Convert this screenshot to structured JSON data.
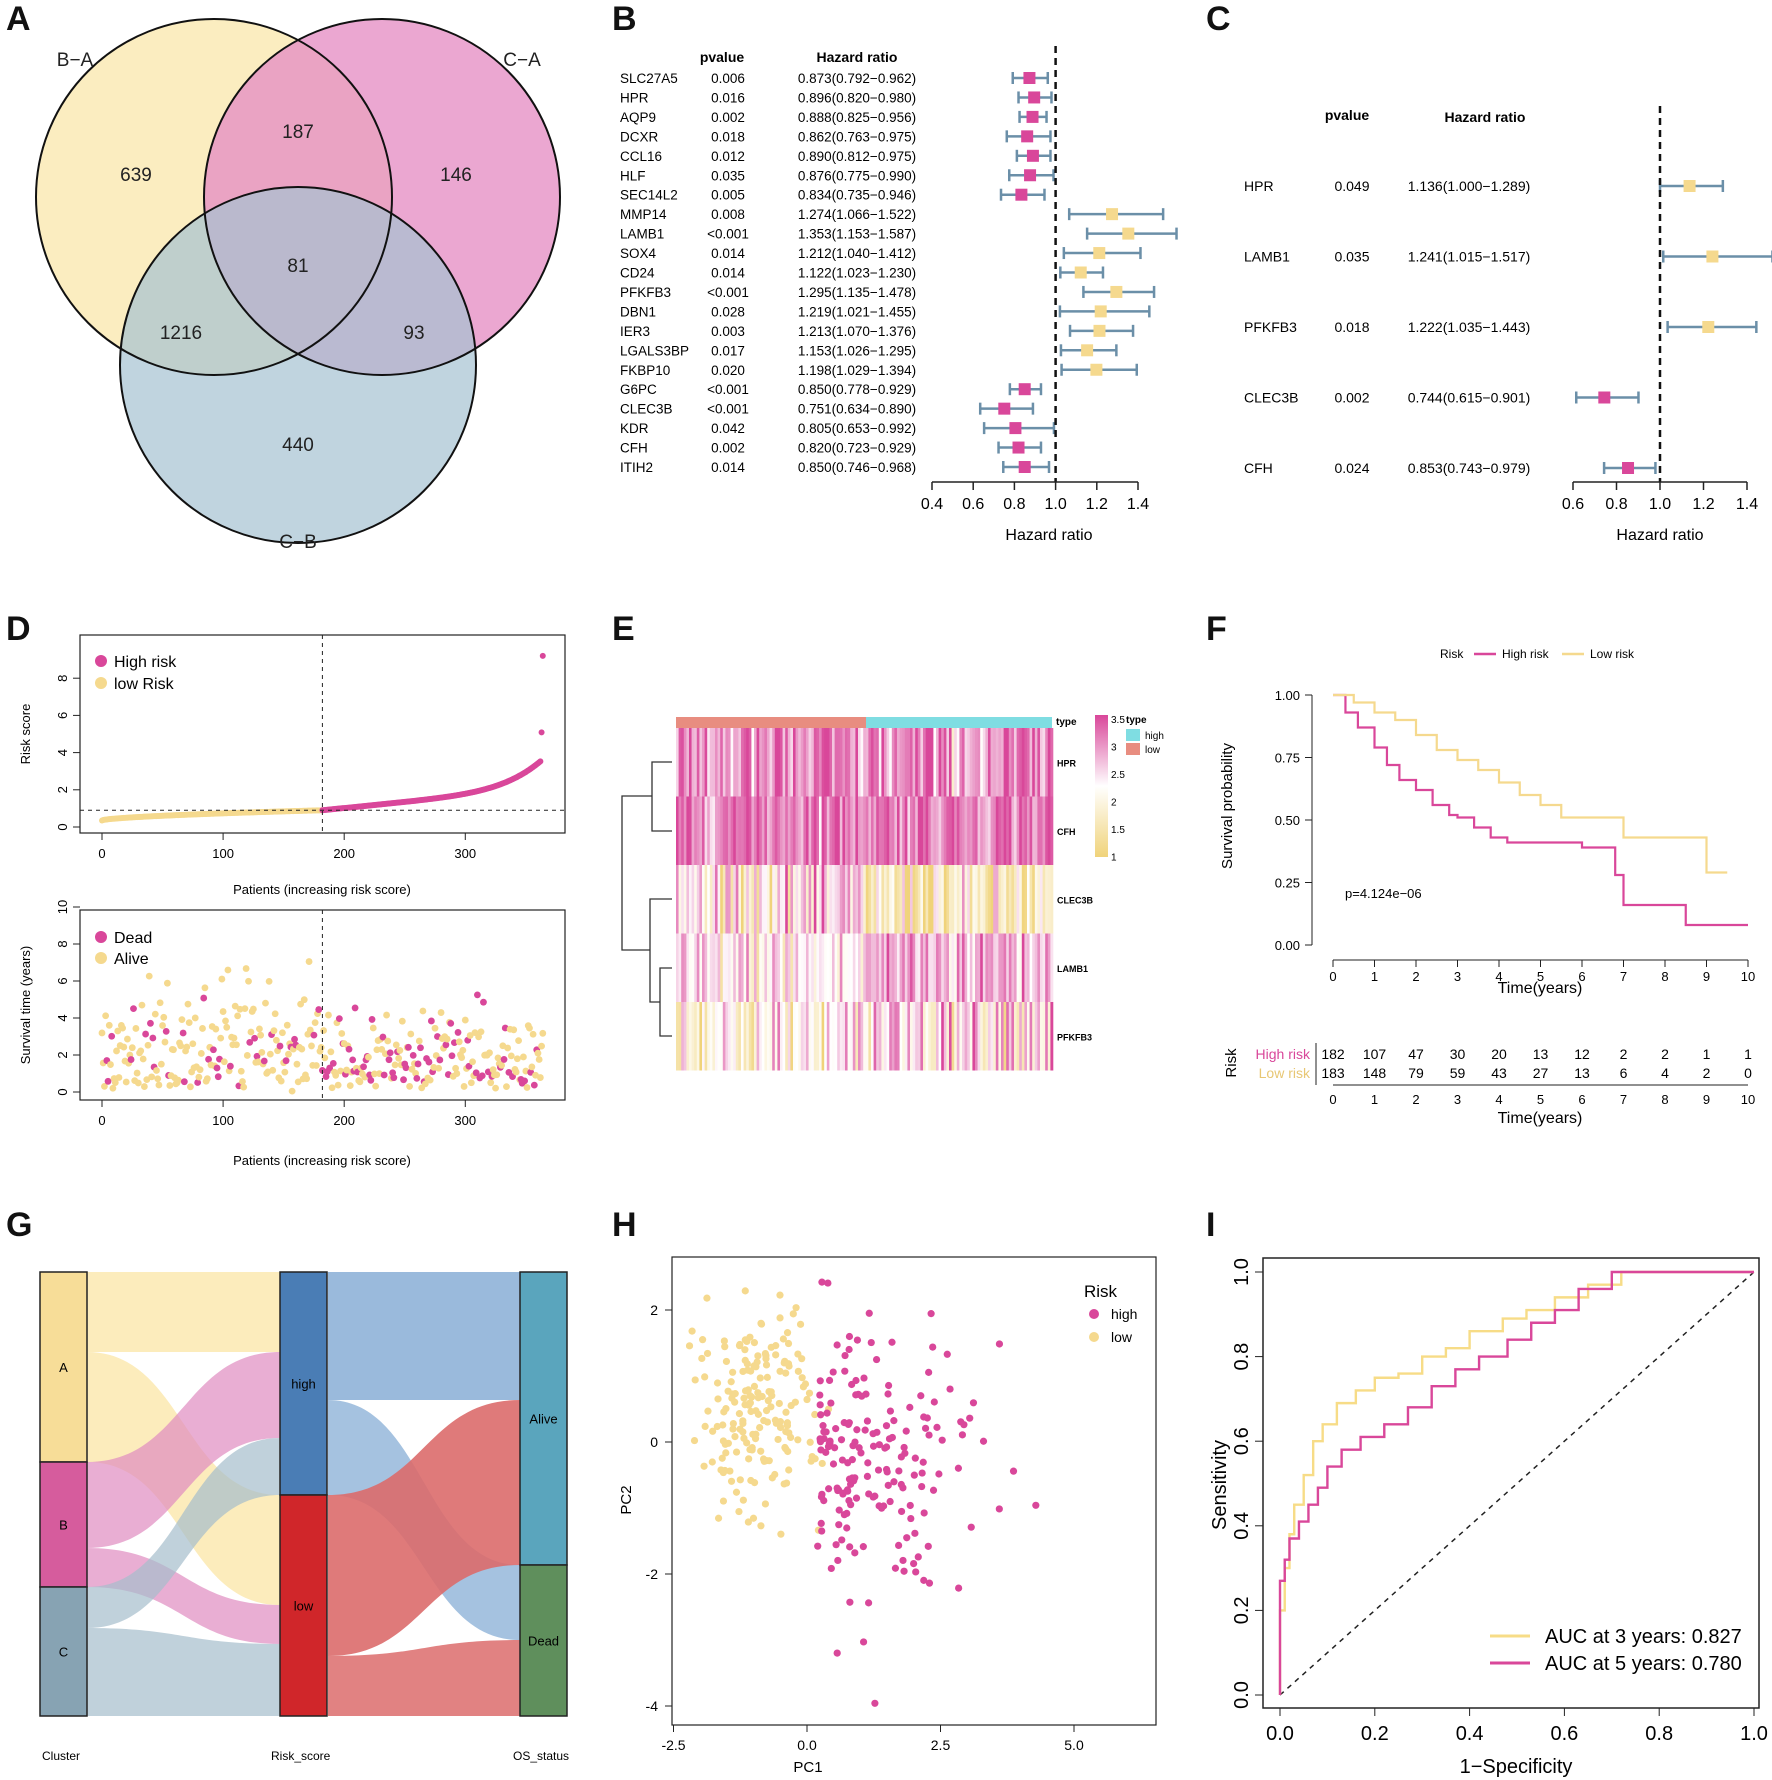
{
  "colors": {
    "pink": "#d9479a",
    "yellow": "#f5d98e",
    "steel": "#6b8fa8",
    "blue": "#4a7db5",
    "red": "#d0262a",
    "teal": "#5aa5bd",
    "green": "#5f8f5c",
    "venn_a": "#fbedc0",
    "venn_b": "#e58ec4",
    "venn_c": "#a5c2d1"
  },
  "panel_labels": [
    "A",
    "B",
    "C",
    "D",
    "E",
    "F",
    "G",
    "H",
    "I"
  ],
  "chart_data": [
    {
      "panel": "A",
      "type": "venn",
      "sets": [
        "B−A",
        "C−A",
        "C−B"
      ],
      "regions": {
        "only_BA": "639",
        "only_CA": "146",
        "only_CB": "440",
        "BA_CA": "187",
        "BA_CB": "1216",
        "CA_CB": "93",
        "all": "81"
      }
    },
    {
      "panel": "B",
      "type": "forest",
      "title": "",
      "col_headers": [
        "pvalue",
        "Hazard ratio"
      ],
      "xlabel": "Hazard ratio",
      "xlim": [
        0.4,
        1.4
      ],
      "ticks": [
        "0.4",
        "0.6",
        "0.8",
        "1.0",
        "1.2",
        "1.4"
      ],
      "rows": [
        {
          "gene": "SLC27A5",
          "p": "0.006",
          "hrtext": "0.873(0.792−0.962)",
          "hr": 0.873,
          "lo": 0.792,
          "hi": 0.962
        },
        {
          "gene": "HPR",
          "p": "0.016",
          "hrtext": "0.896(0.820−0.980)",
          "hr": 0.896,
          "lo": 0.82,
          "hi": 0.98
        },
        {
          "gene": "AQP9",
          "p": "0.002",
          "hrtext": "0.888(0.825−0.956)",
          "hr": 0.888,
          "lo": 0.825,
          "hi": 0.956
        },
        {
          "gene": "DCXR",
          "p": "0.018",
          "hrtext": "0.862(0.763−0.975)",
          "hr": 0.862,
          "lo": 0.763,
          "hi": 0.975
        },
        {
          "gene": "CCL16",
          "p": "0.012",
          "hrtext": "0.890(0.812−0.975)",
          "hr": 0.89,
          "lo": 0.812,
          "hi": 0.975
        },
        {
          "gene": "HLF",
          "p": "0.035",
          "hrtext": "0.876(0.775−0.990)",
          "hr": 0.876,
          "lo": 0.775,
          "hi": 0.99
        },
        {
          "gene": "SEC14L2",
          "p": "0.005",
          "hrtext": "0.834(0.735−0.946)",
          "hr": 0.834,
          "lo": 0.735,
          "hi": 0.946
        },
        {
          "gene": "MMP14",
          "p": "0.008",
          "hrtext": "1.274(1.066−1.522)",
          "hr": 1.274,
          "lo": 1.066,
          "hi": 1.522
        },
        {
          "gene": "LAMB1",
          "p": "<0.001",
          "hrtext": "1.353(1.153−1.587)",
          "hr": 1.353,
          "lo": 1.153,
          "hi": 1.587
        },
        {
          "gene": "SOX4",
          "p": "0.014",
          "hrtext": "1.212(1.040−1.412)",
          "hr": 1.212,
          "lo": 1.04,
          "hi": 1.412
        },
        {
          "gene": "CD24",
          "p": "0.014",
          "hrtext": "1.122(1.023−1.230)",
          "hr": 1.122,
          "lo": 1.023,
          "hi": 1.23
        },
        {
          "gene": "PFKFB3",
          "p": "<0.001",
          "hrtext": "1.295(1.135−1.478)",
          "hr": 1.295,
          "lo": 1.135,
          "hi": 1.478
        },
        {
          "gene": "DBN1",
          "p": "0.028",
          "hrtext": "1.219(1.021−1.455)",
          "hr": 1.219,
          "lo": 1.021,
          "hi": 1.455
        },
        {
          "gene": "IER3",
          "p": "0.003",
          "hrtext": "1.213(1.070−1.376)",
          "hr": 1.213,
          "lo": 1.07,
          "hi": 1.376
        },
        {
          "gene": "LGALS3BP",
          "p": "0.017",
          "hrtext": "1.153(1.026−1.295)",
          "hr": 1.153,
          "lo": 1.026,
          "hi": 1.295
        },
        {
          "gene": "FKBP10",
          "p": "0.020",
          "hrtext": "1.198(1.029−1.394)",
          "hr": 1.198,
          "lo": 1.029,
          "hi": 1.394
        },
        {
          "gene": "G6PC",
          "p": "<0.001",
          "hrtext": "0.850(0.778−0.929)",
          "hr": 0.85,
          "lo": 0.778,
          "hi": 0.929
        },
        {
          "gene": "CLEC3B",
          "p": "<0.001",
          "hrtext": "0.751(0.634−0.890)",
          "hr": 0.751,
          "lo": 0.634,
          "hi": 0.89
        },
        {
          "gene": "KDR",
          "p": "0.042",
          "hrtext": "0.805(0.653−0.992)",
          "hr": 0.805,
          "lo": 0.653,
          "hi": 0.992
        },
        {
          "gene": "CFH",
          "p": "0.002",
          "hrtext": "0.820(0.723−0.929)",
          "hr": 0.82,
          "lo": 0.723,
          "hi": 0.929
        },
        {
          "gene": "ITIH2",
          "p": "0.014",
          "hrtext": "0.850(0.746−0.968)",
          "hr": 0.85,
          "lo": 0.746,
          "hi": 0.968
        }
      ]
    },
    {
      "panel": "C",
      "type": "forest",
      "col_headers": [
        "pvalue",
        "Hazard ratio"
      ],
      "xlabel": "Hazard ratio",
      "xlim": [
        0.6,
        1.4
      ],
      "ticks": [
        "0.6",
        "0.8",
        "1.0",
        "1.2",
        "1.4"
      ],
      "rows": [
        {
          "gene": "HPR",
          "p": "0.049",
          "hrtext": "1.136(1.000−1.289)",
          "hr": 1.136,
          "lo": 1.0,
          "hi": 1.289
        },
        {
          "gene": "LAMB1",
          "p": "0.035",
          "hrtext": "1.241(1.015−1.517)",
          "hr": 1.241,
          "lo": 1.015,
          "hi": 1.517
        },
        {
          "gene": "PFKFB3",
          "p": "0.018",
          "hrtext": "1.222(1.035−1.443)",
          "hr": 1.222,
          "lo": 1.035,
          "hi": 1.443
        },
        {
          "gene": "CLEC3B",
          "p": "0.002",
          "hrtext": "0.744(0.615−0.901)",
          "hr": 0.744,
          "lo": 0.615,
          "hi": 0.901
        },
        {
          "gene": "CFH",
          "p": "0.024",
          "hrtext": "0.853(0.743−0.979)",
          "hr": 0.853,
          "lo": 0.743,
          "hi": 0.979
        }
      ]
    },
    {
      "panel": "D",
      "type": "scatter",
      "n_patients": 365,
      "cutoff_index": 182,
      "risk_cutoff": 0.9,
      "top": {
        "ylabel": "Risk score",
        "xlabel": "Patients (increasing risk score)",
        "yticks": [
          "0",
          "2",
          "4",
          "6",
          "8"
        ],
        "xticks": [
          "0",
          "100",
          "200",
          "300"
        ],
        "legend": [
          "High risk",
          "low Risk"
        ]
      },
      "bottom": {
        "ylabel": "Survival time (years)",
        "xlabel": "Patients (increasing risk score)",
        "yticks": [
          "0",
          "2",
          "4",
          "6",
          "8",
          "10"
        ],
        "xticks": [
          "0",
          "100",
          "200",
          "300"
        ],
        "legend": [
          "Dead",
          "Alive"
        ]
      }
    },
    {
      "panel": "E",
      "type": "heatmap",
      "rows": [
        "HPR",
        "CFH",
        "CLEC3B",
        "LAMB1",
        "PFKFB3"
      ],
      "annotation_label": "type",
      "legend_title": "type",
      "legend_items": [
        "high",
        "low"
      ],
      "scale_ticks": [
        "3.5",
        "3",
        "2.5",
        "2",
        "1.5",
        "1"
      ]
    },
    {
      "panel": "F",
      "type": "line",
      "title": "",
      "legend_title": "Risk",
      "legend": [
        "High risk",
        "Low risk"
      ],
      "xlabel": "Time(years)",
      "ylabel": "Survival probability",
      "pvalue": "p=4.124e−06",
      "xticks": [
        "0",
        "1",
        "2",
        "3",
        "4",
        "5",
        "6",
        "7",
        "8",
        "9",
        "10"
      ],
      "yticks": [
        "0.00",
        "0.25",
        "0.50",
        "0.75",
        "1.00"
      ],
      "risk_table": {
        "title": "Risk",
        "rows": [
          {
            "name": "High risk",
            "values": [
              "182",
              "107",
              "47",
              "30",
              "20",
              "13",
              "12",
              "2",
              "2",
              "1",
              "1"
            ]
          },
          {
            "name": "Low risk",
            "values": [
              "183",
              "148",
              "79",
              "59",
              "43",
              "27",
              "13",
              "6",
              "4",
              "2",
              "0"
            ]
          }
        ]
      },
      "series": [
        {
          "name": "High risk",
          "x": [
            0,
            0.3,
            0.6,
            1,
            1.3,
            1.6,
            2,
            2.4,
            2.8,
            3,
            3.4,
            3.8,
            4.2,
            5,
            6,
            6.6,
            6.8,
            7,
            7.5,
            8,
            8.5,
            9,
            10
          ],
          "y": [
            1,
            0.93,
            0.87,
            0.79,
            0.72,
            0.66,
            0.62,
            0.56,
            0.52,
            0.51,
            0.47,
            0.43,
            0.41,
            0.41,
            0.39,
            0.39,
            0.28,
            0.16,
            0.16,
            0.16,
            0.08,
            0.08,
            0.08
          ]
        },
        {
          "name": "Low risk",
          "x": [
            0,
            0.5,
            1,
            1.5,
            2,
            2.5,
            3,
            3.5,
            4,
            4.5,
            5,
            5.5,
            6,
            6.5,
            7,
            8,
            9,
            9.5
          ],
          "y": [
            1,
            0.97,
            0.93,
            0.9,
            0.84,
            0.78,
            0.74,
            0.7,
            0.65,
            0.6,
            0.56,
            0.51,
            0.51,
            0.51,
            0.43,
            0.43,
            0.29,
            0.29
          ]
        }
      ]
    },
    {
      "panel": "G",
      "type": "sankey",
      "axes": [
        "Cluster",
        "Risk_score",
        "OS_status"
      ],
      "nodes": {
        "Cluster": [
          "A",
          "B",
          "C"
        ],
        "Risk_score": [
          "high",
          "low"
        ],
        "OS_status": [
          "Alive",
          "Dead"
        ]
      }
    },
    {
      "panel": "H",
      "type": "scatter",
      "xlabel": "PC1",
      "ylabel": "PC2",
      "legend_title": "Risk",
      "legend": [
        "high",
        "low"
      ],
      "xticks": [
        "-2.5",
        "0.0",
        "2.5",
        "5.0"
      ],
      "yticks": [
        "2",
        "0",
        "-2",
        "-4"
      ],
      "xlim": [
        -2.7,
        6.3
      ],
      "ylim": [
        -4.3,
        2.5
      ]
    },
    {
      "panel": "I",
      "type": "line",
      "xlabel": "1−Specificity",
      "ylabel": "Sensitivity",
      "xticks": [
        "0.0",
        "0.2",
        "0.4",
        "0.6",
        "0.8",
        "1.0"
      ],
      "yticks": [
        "0.0",
        "0.2",
        "0.4",
        "0.6",
        "0.8",
        "1.0"
      ],
      "legend": [
        "AUC at 3 years: 0.827",
        "AUC at 5 years: 0.780"
      ],
      "series": [
        {
          "name": "AUC at 3 years: 0.827",
          "x": [
            0,
            0.01,
            0.02,
            0.03,
            0.05,
            0.07,
            0.09,
            0.12,
            0.16,
            0.2,
            0.25,
            0.3,
            0.35,
            0.4,
            0.47,
            0.52,
            0.58,
            0.65,
            0.72,
            0.8,
            1
          ],
          "y": [
            0,
            0.2,
            0.3,
            0.38,
            0.45,
            0.52,
            0.6,
            0.64,
            0.69,
            0.72,
            0.75,
            0.76,
            0.8,
            0.82,
            0.86,
            0.89,
            0.91,
            0.94,
            0.97,
            1,
            1
          ]
        },
        {
          "name": "AUC at 5 years: 0.780",
          "x": [
            0,
            0.01,
            0.02,
            0.04,
            0.06,
            0.08,
            0.1,
            0.13,
            0.17,
            0.22,
            0.27,
            0.32,
            0.37,
            0.42,
            0.48,
            0.53,
            0.58,
            0.63,
            0.7,
            0.8,
            1
          ],
          "y": [
            0,
            0.27,
            0.32,
            0.37,
            0.41,
            0.45,
            0.49,
            0.54,
            0.58,
            0.61,
            0.64,
            0.68,
            0.73,
            0.77,
            0.8,
            0.84,
            0.88,
            0.91,
            0.96,
            1,
            1
          ]
        }
      ]
    }
  ]
}
